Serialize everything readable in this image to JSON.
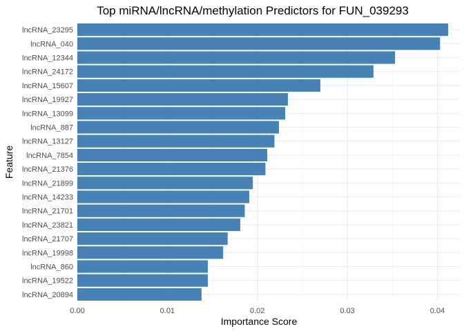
{
  "chart_data": {
    "type": "bar",
    "orientation": "horizontal",
    "title": "Top miRNA/lncRNA/methylation Predictors for FUN_039293",
    "xlabel": "Importance Score",
    "ylabel": "Feature",
    "xlim": [
      0,
      0.0425
    ],
    "x_ticks": [
      0,
      0.01,
      0.02,
      0.03,
      0.04
    ],
    "x_tick_labels": [
      "0.00",
      "0.01",
      "0.02",
      "0.03",
      "0.04"
    ],
    "grid": true,
    "bar_color": "#4682b4",
    "categories": [
      "lncRNA_23295",
      "lncRNA_040",
      "lncRNA_12344",
      "lncRNA_24172",
      "lncRNA_15607",
      "lncRNA_19927",
      "lncRNA_13099",
      "lncRNA_887",
      "lncRNA_13127",
      "lncRNA_7854",
      "lncRNA_21376",
      "lncRNA_21899",
      "lncRNA_14233",
      "lncRNA_21701",
      "lncRNA_23821",
      "lncRNA_21707",
      "lncRNA_19998",
      "lncRNA_860",
      "lncRNA_19522",
      "lncRNA_20894"
    ],
    "values": [
      0.0412,
      0.0403,
      0.0353,
      0.0329,
      0.027,
      0.0234,
      0.0231,
      0.0224,
      0.0219,
      0.0211,
      0.0209,
      0.0195,
      0.0191,
      0.0186,
      0.0181,
      0.0167,
      0.0162,
      0.0145,
      0.0145,
      0.0138
    ]
  }
}
